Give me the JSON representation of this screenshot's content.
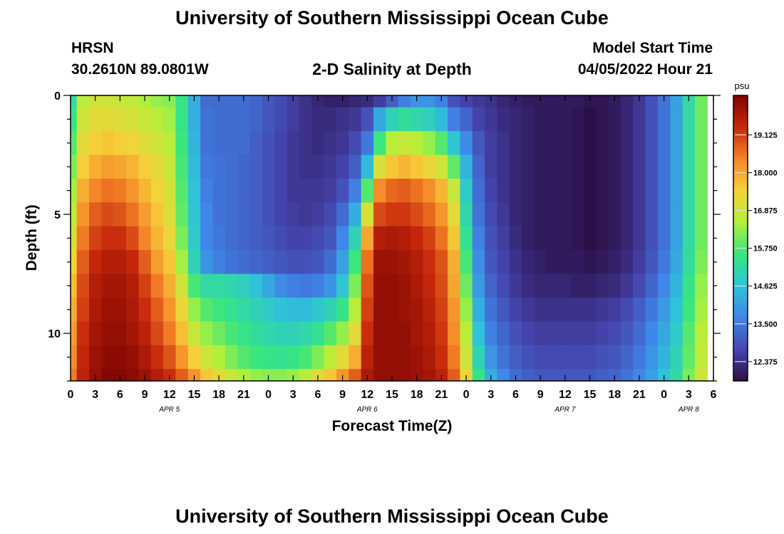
{
  "page": {
    "title": "University of Southern Mississippi Ocean Cube",
    "footer_title": "University of Southern Mississippi Ocean Cube",
    "station_name": "HRSN",
    "station_coords": "30.2610N  89.0801W",
    "subtitle": "2-D Salinity at Depth",
    "model_start_label": "Model Start Time",
    "model_start_value": "04/05/2022 Hour 21"
  },
  "chart_data": {
    "type": "heatmap",
    "title": "2-D Salinity at Depth",
    "xlabel": "Forecast Time(Z)",
    "ylabel": "Depth (ft)",
    "x_tick_labels": [
      "0",
      "3",
      "6",
      "9",
      "12",
      "15",
      "18",
      "21",
      "0",
      "3",
      "6",
      "9",
      "12",
      "15",
      "18",
      "21",
      "0",
      "3",
      "6",
      "9",
      "12",
      "15",
      "18",
      "21",
      "0",
      "3",
      "6"
    ],
    "x_tick_hours": [
      0,
      3,
      6,
      9,
      12,
      15,
      18,
      21,
      24,
      27,
      30,
      33,
      36,
      39,
      42,
      45,
      48,
      51,
      54,
      57,
      60,
      63,
      66,
      69,
      72,
      75,
      78
    ],
    "date_labels": [
      {
        "label": "APR 5",
        "hour": 12
      },
      {
        "label": "APR 6",
        "hour": 36
      },
      {
        "label": "APR 7",
        "hour": 60
      },
      {
        "label": "APR 8",
        "hour": 75
      }
    ],
    "xlim": [
      0,
      78
    ],
    "y_tick_labels": [
      "0",
      "5",
      "10"
    ],
    "y_tick_values": [
      0,
      5,
      10
    ],
    "ylim": [
      0,
      12
    ],
    "y_inverted": true,
    "colorbar": {
      "unit": "psu",
      "tick_labels": [
        "19.125",
        "18.000",
        "16.875",
        "15.750",
        "14.625",
        "13.500",
        "12.375"
      ],
      "tick_values": [
        19.125,
        18.0,
        16.875,
        15.75,
        14.625,
        13.5,
        12.375
      ],
      "range": [
        11.8,
        20.3
      ],
      "colors": [
        "#2c0f47",
        "#4546b0",
        "#3f86e8",
        "#2ec4d8",
        "#37e67f",
        "#b3f03a",
        "#f6d13a",
        "#f58428",
        "#c6280b",
        "#7d0303"
      ]
    },
    "grid": false,
    "hours": [
      0,
      1.5,
      3,
      4.5,
      6,
      7.5,
      9,
      10.5,
      12,
      13.5,
      15,
      16.5,
      18,
      19.5,
      21,
      22.5,
      24,
      25.5,
      27,
      28.5,
      30,
      31.5,
      33,
      34.5,
      36,
      37.5,
      39,
      40.5,
      42,
      43.5,
      45,
      46.5,
      48,
      49.5,
      51,
      52.5,
      54,
      55.5,
      57,
      58.5,
      60,
      61.5,
      63,
      64.5,
      66,
      67.5,
      69,
      70.5,
      72,
      73.5,
      75,
      76.5
    ],
    "depths": [
      0,
      1,
      2,
      3,
      4,
      5,
      6,
      7,
      8,
      9,
      10,
      11,
      12
    ],
    "values": [
      [
        15.2,
        16.6,
        16.9,
        16.9,
        16.8,
        16.7,
        16.5,
        16.3,
        16.2,
        15.5,
        14.3,
        13.3,
        13.3,
        13.3,
        13.3,
        13.2,
        13.0,
        12.8,
        12.6,
        12.4,
        12.2,
        12.1,
        12.1,
        12.2,
        12.3,
        12.6,
        13.1,
        13.6,
        13.9,
        13.9,
        13.6,
        12.9,
        12.7,
        12.5,
        12.4,
        12.2,
        12.1,
        12.0,
        12.0,
        12.0,
        12.0,
        12.0,
        11.9,
        11.9,
        12.0,
        12.2,
        12.5,
        12.9,
        13.4,
        14.1,
        15.2,
        16.0
      ],
      [
        15.5,
        16.9,
        17.2,
        17.2,
        17.1,
        17.0,
        16.8,
        16.6,
        16.4,
        15.5,
        14.3,
        13.4,
        13.3,
        13.3,
        13.3,
        13.2,
        13.0,
        12.8,
        12.6,
        12.4,
        12.3,
        12.3,
        12.4,
        12.5,
        12.9,
        14.2,
        15.0,
        15.3,
        15.1,
        14.9,
        14.5,
        13.6,
        13.2,
        12.7,
        12.5,
        12.3,
        12.2,
        12.1,
        12.0,
        12.0,
        12.0,
        11.9,
        11.8,
        11.9,
        12.0,
        12.2,
        12.5,
        12.9,
        13.4,
        14.1,
        15.2,
        16.0
      ],
      [
        15.8,
        17.2,
        17.5,
        17.6,
        17.5,
        17.4,
        17.1,
        16.9,
        16.6,
        15.6,
        14.4,
        13.4,
        13.3,
        13.3,
        13.3,
        13.1,
        12.9,
        12.7,
        12.5,
        12.4,
        12.3,
        12.4,
        12.5,
        12.8,
        13.5,
        15.6,
        16.6,
        16.8,
        16.6,
        16.3,
        15.8,
        14.7,
        13.8,
        13.0,
        12.6,
        12.4,
        12.2,
        12.1,
        12.0,
        12.0,
        12.0,
        11.9,
        11.8,
        11.9,
        12.0,
        12.2,
        12.5,
        12.9,
        13.4,
        14.1,
        15.2,
        16.0
      ],
      [
        16.1,
        17.5,
        17.9,
        18.1,
        18.0,
        17.8,
        17.5,
        17.2,
        16.8,
        15.7,
        14.5,
        13.5,
        13.4,
        13.3,
        13.2,
        13.1,
        12.9,
        12.7,
        12.5,
        12.4,
        12.4,
        12.5,
        12.7,
        13.1,
        14.5,
        17.0,
        17.6,
        17.8,
        17.6,
        17.3,
        16.9,
        15.9,
        14.4,
        13.2,
        12.6,
        12.4,
        12.2,
        12.1,
        12.0,
        12.0,
        12.0,
        11.9,
        11.8,
        11.9,
        12.0,
        12.2,
        12.5,
        12.9,
        13.4,
        14.1,
        15.2,
        16.0
      ],
      [
        16.4,
        17.9,
        18.4,
        18.6,
        18.5,
        18.2,
        17.8,
        17.4,
        17.0,
        15.8,
        14.6,
        13.6,
        13.4,
        13.3,
        13.2,
        13.1,
        12.9,
        12.7,
        12.5,
        12.5,
        12.5,
        12.6,
        12.9,
        13.6,
        15.8,
        18.3,
        18.7,
        18.8,
        18.6,
        18.3,
        17.8,
        16.8,
        14.8,
        13.3,
        12.7,
        12.4,
        12.2,
        12.1,
        12.0,
        12.0,
        12.0,
        11.9,
        11.8,
        11.9,
        12.0,
        12.2,
        12.5,
        12.9,
        13.4,
        14.1,
        15.2,
        16.0
      ],
      [
        16.7,
        18.2,
        18.8,
        19.0,
        18.9,
        18.6,
        18.1,
        17.6,
        17.1,
        15.9,
        14.7,
        13.7,
        13.4,
        13.3,
        13.2,
        13.1,
        12.9,
        12.7,
        12.6,
        12.5,
        12.6,
        12.8,
        13.3,
        14.3,
        17.0,
        19.0,
        19.2,
        19.2,
        19.0,
        18.7,
        18.2,
        17.2,
        15.1,
        13.4,
        12.8,
        12.5,
        12.2,
        12.1,
        12.0,
        12.0,
        12.0,
        11.9,
        11.8,
        11.9,
        12.0,
        12.2,
        12.5,
        12.9,
        13.4,
        14.1,
        15.2,
        16.0
      ],
      [
        17.0,
        18.5,
        19.1,
        19.3,
        19.3,
        19.0,
        18.4,
        17.8,
        17.3,
        16.1,
        14.8,
        13.7,
        13.5,
        13.3,
        13.2,
        13.1,
        13.0,
        12.8,
        12.7,
        12.7,
        12.8,
        13.0,
        13.7,
        15.0,
        18.0,
        19.6,
        19.7,
        19.6,
        19.4,
        19.1,
        18.6,
        17.6,
        15.4,
        13.6,
        12.9,
        12.6,
        12.3,
        12.1,
        12.0,
        12.0,
        12.0,
        11.9,
        11.8,
        11.9,
        12.0,
        12.2,
        12.5,
        12.9,
        13.4,
        14.1,
        15.2,
        16.0
      ],
      [
        17.4,
        18.8,
        19.4,
        19.6,
        19.6,
        19.4,
        18.8,
        18.1,
        17.6,
        16.4,
        15.0,
        13.9,
        13.6,
        13.4,
        13.3,
        13.2,
        13.1,
        13.0,
        12.9,
        12.9,
        13.0,
        13.3,
        14.1,
        15.6,
        18.6,
        19.9,
        19.9,
        19.8,
        19.6,
        19.3,
        18.9,
        17.9,
        15.7,
        13.8,
        13.0,
        12.7,
        12.4,
        12.2,
        12.1,
        12.0,
        12.0,
        12.0,
        11.9,
        12.0,
        12.1,
        12.3,
        12.6,
        13.0,
        13.5,
        14.2,
        15.3,
        16.1
      ],
      [
        17.7,
        19.0,
        19.6,
        19.8,
        19.8,
        19.6,
        19.1,
        18.5,
        17.9,
        16.9,
        15.7,
        15.2,
        15.2,
        15.1,
        14.9,
        14.6,
        14.2,
        13.8,
        13.6,
        13.5,
        13.6,
        13.9,
        14.7,
        16.1,
        18.9,
        20.0,
        20.0,
        19.9,
        19.7,
        19.4,
        19.0,
        18.0,
        16.0,
        14.0,
        13.2,
        12.8,
        12.5,
        12.3,
        12.2,
        12.2,
        12.2,
        12.1,
        12.1,
        12.2,
        12.3,
        12.5,
        12.8,
        13.2,
        13.7,
        14.4,
        15.5,
        16.3
      ],
      [
        17.9,
        19.1,
        19.7,
        19.9,
        19.9,
        19.7,
        19.3,
        18.8,
        18.2,
        17.3,
        16.3,
        15.8,
        15.6,
        15.4,
        15.2,
        15.0,
        14.8,
        14.6,
        14.5,
        14.5,
        14.7,
        15.0,
        15.5,
        16.6,
        19.1,
        20.0,
        20.0,
        19.9,
        19.8,
        19.5,
        19.1,
        18.2,
        16.3,
        14.3,
        13.4,
        13.0,
        12.7,
        12.5,
        12.4,
        12.4,
        12.4,
        12.4,
        12.4,
        12.5,
        12.6,
        12.8,
        13.1,
        13.5,
        14.0,
        14.6,
        15.6,
        16.4
      ],
      [
        18.1,
        19.3,
        19.8,
        20.0,
        20.0,
        19.8,
        19.5,
        19.0,
        18.5,
        17.7,
        16.8,
        16.3,
        16.0,
        15.7,
        15.5,
        15.3,
        15.1,
        15.0,
        15.0,
        15.1,
        15.4,
        15.8,
        16.3,
        17.2,
        19.3,
        20.0,
        20.0,
        20.0,
        19.8,
        19.6,
        19.2,
        18.3,
        16.6,
        14.6,
        13.6,
        13.2,
        12.9,
        12.7,
        12.6,
        12.6,
        12.6,
        12.6,
        12.6,
        12.7,
        12.8,
        13.0,
        13.3,
        13.7,
        14.2,
        14.8,
        15.8,
        16.6
      ],
      [
        18.3,
        19.4,
        19.9,
        20.1,
        20.1,
        20.0,
        19.7,
        19.3,
        18.9,
        18.2,
        17.5,
        16.9,
        16.5,
        16.1,
        15.8,
        15.6,
        15.5,
        15.4,
        15.5,
        15.7,
        16.1,
        16.6,
        17.2,
        17.9,
        19.5,
        20.0,
        20.0,
        20.0,
        19.9,
        19.7,
        19.3,
        18.5,
        16.9,
        15.0,
        13.9,
        13.4,
        13.1,
        12.9,
        12.8,
        12.8,
        12.8,
        12.8,
        12.8,
        12.9,
        13.0,
        13.2,
        13.5,
        13.9,
        14.4,
        15.0,
        15.9,
        16.7
      ],
      [
        18.5,
        19.5,
        20.0,
        20.2,
        20.2,
        20.1,
        19.9,
        19.6,
        19.3,
        18.8,
        18.2,
        17.6,
        17.2,
        16.8,
        16.5,
        16.3,
        16.2,
        16.2,
        16.3,
        16.6,
        17.1,
        17.6,
        18.2,
        18.8,
        19.7,
        20.0,
        20.0,
        20.0,
        19.9,
        19.8,
        19.5,
        18.8,
        17.4,
        15.5,
        14.3,
        13.7,
        13.3,
        13.1,
        13.0,
        13.0,
        13.0,
        13.0,
        13.0,
        13.1,
        13.2,
        13.4,
        13.7,
        14.1,
        14.6,
        15.2,
        16.1,
        16.9
      ]
    ]
  }
}
